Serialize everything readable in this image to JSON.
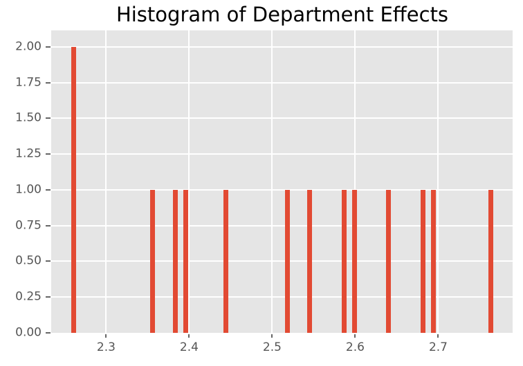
{
  "chart_data": {
    "type": "bar",
    "subtype": "histogram",
    "title": "Histogram of Department Effects",
    "xlabel": "",
    "ylabel": "",
    "bin_centers": [
      2.261,
      2.356,
      2.383,
      2.396,
      2.444,
      2.518,
      2.545,
      2.587,
      2.599,
      2.64,
      2.682,
      2.694,
      2.763
    ],
    "counts": [
      2,
      1,
      1,
      1,
      1,
      1,
      1,
      1,
      1,
      1,
      1,
      1,
      1
    ],
    "bin_width": 0.00583,
    "xlim": [
      2.2338,
      2.7896
    ],
    "ylim": [
      0,
      2.115
    ],
    "xticks": {
      "values": [
        2.3,
        2.4,
        2.5,
        2.6,
        2.7
      ],
      "labels": [
        "2.3",
        "2.4",
        "2.5",
        "2.6",
        "2.7"
      ]
    },
    "yticks": {
      "values": [
        0.0,
        0.25,
        0.5,
        0.75,
        1.0,
        1.25,
        1.5,
        1.75,
        2.0
      ],
      "labels": [
        "0.00",
        "0.25",
        "0.50",
        "0.75",
        "1.00",
        "1.25",
        "1.50",
        "1.75",
        "2.00"
      ]
    },
    "grid": true,
    "legend": false,
    "colors": {
      "bar": "#e24a33",
      "plot_background": "#e5e5e5",
      "figure_background": "#ffffff",
      "grid": "#ffffff",
      "tick": "#666666",
      "tick_label": "#555555",
      "title": "#000000"
    }
  }
}
